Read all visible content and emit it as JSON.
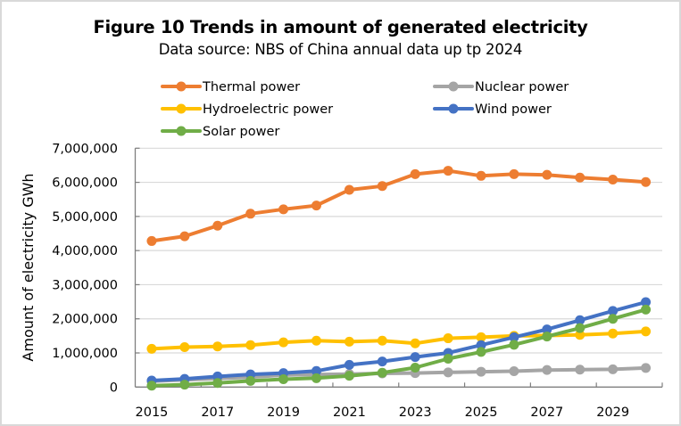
{
  "chart_data": {
    "type": "line",
    "title": "Figure 10  Trends in amount of generated electricity",
    "subtitle": "Data source: NBS of China annual data up tp 2024",
    "xlabel": "",
    "ylabel": "Amount of electricity   GWh",
    "ylim": [
      0,
      7000000
    ],
    "y_ticks": [
      0,
      1000000,
      2000000,
      3000000,
      4000000,
      5000000,
      6000000,
      7000000
    ],
    "y_tick_labels": [
      "0",
      "1,000,000",
      "2,000,000",
      "3,000,000",
      "4,000,000",
      "5,000,000",
      "6,000,000",
      "7,000,000"
    ],
    "categories": [
      "2015",
      "2016",
      "2017",
      "2018",
      "2019",
      "2020",
      "2021",
      "2022",
      "2023",
      "2024",
      "2025",
      "2026",
      "2027",
      "2028",
      "2029",
      "2030"
    ],
    "x_tick_labels": [
      "2015",
      "2017",
      "2019",
      "2021",
      "2023",
      "2025",
      "2027",
      "2029"
    ],
    "grid": "horizontal",
    "legend_position": "top",
    "series": [
      {
        "name": "Thermal power",
        "color": "#ED7D31",
        "values": [
          4280000,
          4420000,
          4730000,
          5080000,
          5210000,
          5320000,
          5780000,
          5890000,
          6240000,
          6340000,
          6190000,
          6240000,
          6220000,
          6140000,
          6080000,
          6010000
        ]
      },
      {
        "name": "Nuclear power",
        "color": "#A5A5A5",
        "values": [
          170000,
          210000,
          250000,
          290000,
          350000,
          366000,
          380000,
          400000,
          410000,
          430000,
          450000,
          465000,
          500000,
          510000,
          520000,
          560000
        ]
      },
      {
        "name": "Hydroelectric power",
        "color": "#FFC000",
        "values": [
          1120000,
          1170000,
          1190000,
          1230000,
          1310000,
          1360000,
          1330000,
          1360000,
          1280000,
          1430000,
          1460000,
          1500000,
          1510000,
          1530000,
          1570000,
          1630000
        ]
      },
      {
        "name": "Wind power",
        "color": "#4472C4",
        "values": [
          190000,
          240000,
          310000,
          370000,
          410000,
          470000,
          650000,
          750000,
          880000,
          1000000,
          1230000,
          1460000,
          1690000,
          1960000,
          2230000,
          2490000
        ]
      },
      {
        "name": "Solar power",
        "color": "#70AD47",
        "values": [
          40000,
          70000,
          120000,
          180000,
          230000,
          260000,
          330000,
          420000,
          570000,
          830000,
          1030000,
          1240000,
          1480000,
          1730000,
          2000000,
          2270000
        ]
      }
    ],
    "legend_order": [
      0,
      1,
      2,
      3,
      4
    ]
  }
}
